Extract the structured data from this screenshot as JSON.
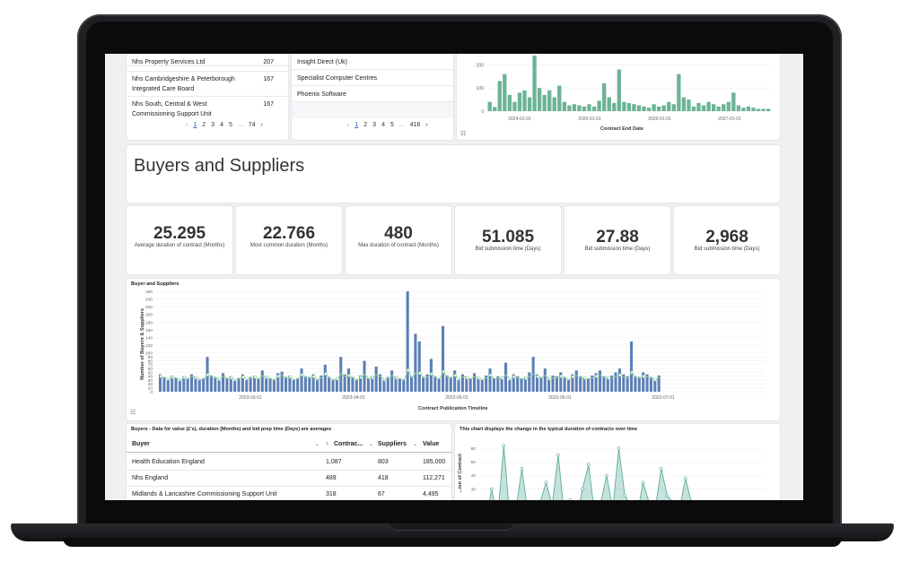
{
  "top_buyers": {
    "rows": [
      {
        "name": "Nhs Property Services Ltd",
        "value": "207"
      },
      {
        "name": "Nhs Cambridgeshire & Peterborough Integrated Care Board",
        "value": "167"
      },
      {
        "name": "Nhs South, Central & West Commissioning Support Unit",
        "value": "167"
      }
    ],
    "pager": {
      "prev": "‹",
      "pages": [
        "1",
        "2",
        "3",
        "4",
        "5"
      ],
      "current": "1",
      "ellipsis": "...",
      "last": "74",
      "next": "›"
    }
  },
  "top_suppliers": {
    "rows": [
      {
        "name": "Insight Direct (Uk)"
      },
      {
        "name": "Specialist Computer Centres"
      },
      {
        "name": "Phoenix Software"
      }
    ],
    "pager": {
      "prev": "‹",
      "pages": [
        "1",
        "2",
        "3",
        "4",
        "5"
      ],
      "current": "1",
      "ellipsis": "...",
      "last": "416",
      "next": "›"
    }
  },
  "section": {
    "title": "Buyers and Suppliers"
  },
  "kpis": [
    {
      "value": "25.295",
      "label": "Average duration of contract (Months)"
    },
    {
      "value": "22.766",
      "label": "Most common duration (Months)"
    },
    {
      "value": "480",
      "label": "Max duration of contract (Months)"
    },
    {
      "value": "51.085",
      "label": "Bid submission time (Days)"
    },
    {
      "value": "27.88",
      "label": "Bid submission time (Days)"
    },
    {
      "value": "2,968",
      "label": "Bid submission time (Days)"
    }
  ],
  "table": {
    "title": "Buyers - Data for value (£'s), duration (Months) and bid prep time (Days) are averages",
    "headers": {
      "buyer": "Buyer",
      "contracts": "Contrac...",
      "suppliers": "Suppliers",
      "value": "Value"
    },
    "rows": [
      {
        "buyer": "Health Education England",
        "contracts": "1,087",
        "suppliers": "803",
        "value": "185,000"
      },
      {
        "buyer": "Nhs England",
        "contracts": "489",
        "suppliers": "418",
        "value": "112,271"
      },
      {
        "buyer": "Midlands & Lancashire Commissioning Support Unit",
        "contracts": "318",
        "suppliers": "67",
        "value": "4,495"
      }
    ]
  },
  "colors": {
    "green": "#6db395",
    "blue": "#5b7fb6",
    "teal": "#5aab9a",
    "line": "#8fd19e"
  },
  "icons": {
    "legend": "list-icon",
    "sort": "sort-down-icon"
  },
  "chart_data": [
    {
      "type": "bar",
      "xlabel": "Contract End Date",
      "ylabel": "",
      "ylim": [
        0,
        240
      ],
      "yticks": [
        0,
        100,
        200
      ],
      "xticks": [
        "2024-01-01",
        "2025-01-01",
        "2026-01-01",
        "2027-01-01"
      ],
      "grid": true,
      "values": [
        40,
        18,
        130,
        160,
        70,
        40,
        80,
        90,
        60,
        240,
        100,
        70,
        90,
        60,
        110,
        40,
        25,
        30,
        25,
        20,
        30,
        20,
        45,
        120,
        60,
        35,
        180,
        40,
        35,
        30,
        25,
        20,
        15,
        30,
        20,
        25,
        40,
        30,
        160,
        60,
        50,
        20,
        35,
        25,
        40,
        30,
        20,
        30,
        40,
        80,
        25,
        15,
        20,
        15,
        10,
        10,
        10
      ]
    },
    {
      "type": "bar",
      "title": "Buyer and Suppliers",
      "xlabel": "Contract Publication Timeline",
      "ylabel": "Number of Buyers & Suppliers",
      "ylim": [
        0,
        260
      ],
      "yticks": [
        0,
        10,
        20,
        30,
        40,
        50,
        60,
        70,
        80,
        90,
        100,
        120,
        140,
        160,
        180,
        200,
        220,
        240,
        260
      ],
      "xticks": [
        "2023-03-01",
        "2023-04-01",
        "2023-05-01",
        "2023-06-01",
        "2023-07-01"
      ],
      "grid": true,
      "series": [
        {
          "values": [
            45,
            38,
            30,
            42,
            35,
            28,
            40,
            33,
            45,
            38,
            30,
            35,
            90,
            42,
            38,
            30,
            48,
            35,
            40,
            28,
            36,
            45,
            30,
            38,
            42,
            33,
            55,
            40,
            35,
            30,
            48,
            52,
            38,
            42,
            30,
            35,
            60,
            40,
            38,
            45,
            30,
            42,
            70,
            38,
            30,
            35,
            90,
            45,
            60,
            38,
            30,
            42,
            80,
            35,
            40,
            65,
            45,
            30,
            38,
            55,
            40,
            35,
            30,
            260,
            40,
            150,
            130,
            38,
            45,
            85,
            40,
            35,
            170,
            42,
            38,
            55,
            30,
            45,
            40,
            35,
            48,
            38,
            30,
            42,
            60,
            35,
            40,
            38,
            75,
            30,
            45,
            40,
            35,
            38,
            50,
            90,
            45,
            38,
            60,
            35,
            42,
            40,
            50,
            38,
            30,
            45,
            55,
            40,
            38,
            35,
            42,
            48,
            55,
            40,
            38,
            42,
            50,
            60,
            45,
            40,
            130,
            40,
            38,
            50,
            45,
            38,
            30,
            42
          ]
        },
        {
          "type": "line",
          "values": [
            40,
            36,
            32,
            38,
            35,
            30,
            37,
            34,
            40,
            36,
            32,
            34,
            44,
            38,
            36,
            32,
            40,
            34,
            36,
            30,
            34,
            38,
            32,
            35,
            38,
            33,
            42,
            37,
            34,
            31,
            40,
            42,
            35,
            38,
            31,
            34,
            44,
            36,
            35,
            39,
            31,
            37,
            46,
            35,
            31,
            33,
            48,
            39,
            42,
            35,
            31,
            37,
            45,
            33,
            36,
            44,
            39,
            31,
            35,
            42,
            36,
            33,
            31,
            56,
            36,
            50,
            48,
            35,
            39,
            46,
            36,
            33,
            52,
            37,
            35,
            42,
            31,
            39,
            36,
            33,
            40,
            35,
            31,
            37,
            43,
            33,
            36,
            35,
            44,
            31,
            39,
            36,
            33,
            35,
            40,
            46,
            39,
            35,
            43,
            33,
            37,
            36,
            40,
            35,
            31,
            39,
            42,
            36,
            35,
            33,
            37,
            40,
            42,
            36,
            35,
            37,
            40,
            43,
            39,
            36,
            50,
            36,
            35,
            40,
            39,
            35,
            31,
            37
          ]
        }
      ]
    },
    {
      "type": "area",
      "title": "This chart displays the change in the typical duration of contracts over time",
      "ylabel": "...ion of Contract",
      "ylim": [
        0,
        70
      ],
      "yticks": [
        0,
        10,
        20,
        30,
        40,
        50,
        60
      ],
      "grid": true,
      "values": [
        5,
        30,
        8,
        62,
        10,
        15,
        45,
        12,
        8,
        20,
        35,
        18,
        55,
        10,
        22,
        8,
        30,
        48,
        12,
        20,
        40,
        15,
        60,
        25,
        18,
        10,
        35,
        20,
        15,
        45,
        25,
        20,
        15,
        38,
        20,
        12,
        16,
        14,
        20,
        12,
        18
      ]
    }
  ]
}
